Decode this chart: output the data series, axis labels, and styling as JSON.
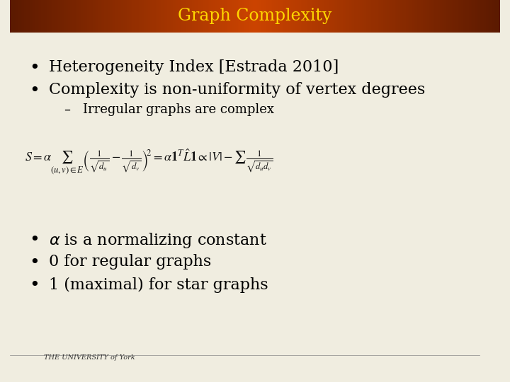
{
  "title": "Graph Complexity",
  "title_color": "#FFD700",
  "title_bar_color_left": "#5C1A00",
  "title_bar_color_right": "#CC4400",
  "bg_color": "#F0EDE0",
  "bullet1": "Heterogeneity Index [Estrada 2010]",
  "bullet2": "Complexity is non-uniformity of vertex degrees",
  "sub_bullet": "Irregular graphs are complex",
  "bullet3": "α is a normalizing constant",
  "bullet4": "0 for regular graphs",
  "bullet5": "1 (maximal) for star graphs",
  "text_color": "#000000",
  "formula_color": "#111111",
  "bullet_fontsize": 16,
  "sub_bullet_fontsize": 13,
  "title_fontsize": 17
}
